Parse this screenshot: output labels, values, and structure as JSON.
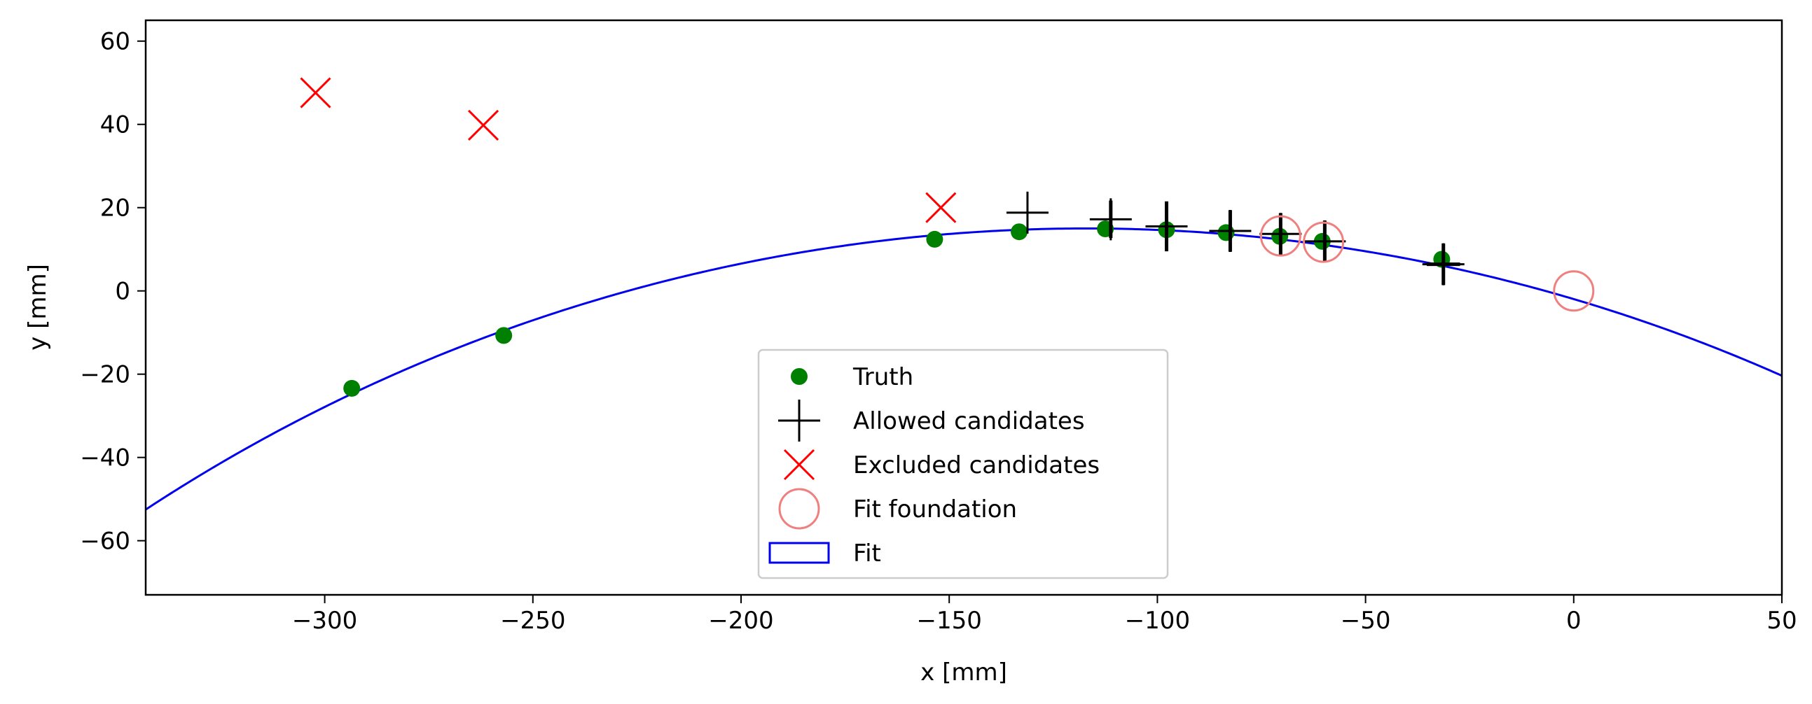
{
  "chart_data": {
    "type": "scatter",
    "xlabel": "x [mm]",
    "ylabel": "y [mm]",
    "xlim": [
      -343,
      50
    ],
    "ylim": [
      -73,
      65
    ],
    "xticks": [
      -300,
      -250,
      -200,
      -150,
      -100,
      -50,
      0,
      50
    ],
    "yticks": [
      -60,
      -40,
      -20,
      0,
      20,
      40,
      60
    ],
    "xtick_labels": [
      "−300",
      "−250",
      "−200",
      "−150",
      "−100",
      "−50",
      "0",
      "50"
    ],
    "ytick_labels": [
      "−60",
      "−40",
      "−20",
      "0",
      "20",
      "40",
      "60"
    ],
    "grid": false,
    "legend_position": "lower-center",
    "series": [
      {
        "name": "Truth",
        "marker": "filled-circle",
        "color": "#008000",
        "points": [
          [
            -293.5,
            -23.4
          ],
          [
            -257.0,
            -10.7
          ],
          [
            -153.5,
            12.4
          ],
          [
            -133.2,
            14.2
          ],
          [
            -112.5,
            14.9
          ],
          [
            -97.8,
            14.7
          ],
          [
            -83.5,
            14.0
          ],
          [
            -70.6,
            13.1
          ],
          [
            -60.4,
            11.9
          ],
          [
            -31.7,
            7.6
          ]
        ]
      },
      {
        "name": "Allowed candidates",
        "marker": "plus",
        "color": "#000000",
        "points": [
          [
            -131.2,
            18.8
          ],
          [
            -111.2,
            17.2
          ],
          [
            -97.8,
            15.5
          ],
          [
            -82.5,
            14.4
          ],
          [
            -70.4,
            13.7
          ],
          [
            -59.8,
            11.9
          ],
          [
            -31.3,
            6.4
          ]
        ],
        "x_err": [
          0,
          0,
          0,
          0,
          0,
          0,
          4
        ],
        "y_err": [
          0,
          4.5,
          6,
          5,
          5,
          5,
          5
        ]
      },
      {
        "name": "Excluded candidates",
        "marker": "x",
        "color": "#ff0000",
        "points": [
          [
            -302.2,
            47.6
          ],
          [
            -261.9,
            39.8
          ],
          [
            -152.0,
            20.0
          ]
        ]
      },
      {
        "name": "Fit foundation",
        "marker": "open-circle",
        "color": "#f08080",
        "points": [
          [
            -70.4,
            13.2
          ],
          [
            -60.1,
            11.7
          ],
          [
            0,
            0
          ]
        ]
      },
      {
        "name": "Fit",
        "type": "line",
        "color": "#0000ee",
        "curve": "circle",
        "center": [
          -117.0,
          -397.0
        ],
        "radius": 412.0
      }
    ],
    "legend": [
      "Truth",
      "Allowed candidates",
      "Excluded candidates",
      "Fit foundation",
      "Fit"
    ]
  }
}
